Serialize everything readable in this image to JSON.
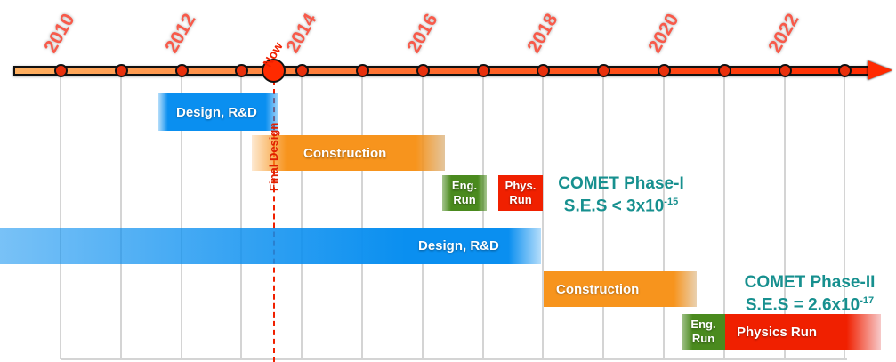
{
  "timeline": {
    "years": [
      "2010",
      "2012",
      "2014",
      "2016",
      "2018",
      "2020",
      "2022"
    ],
    "now_label": "Now",
    "final_design_label": "Final Design",
    "colors": {
      "axis": "#ff2a00",
      "design": "#0a8ff0",
      "construction": "#f7941d",
      "eng_run": "#4a8a1e",
      "phys_run": "#f02000",
      "comet_text": "#17908f"
    }
  },
  "phase1": {
    "design": "Design, R&D",
    "construction": "Construction",
    "eng_run": [
      "Eng.",
      "Run"
    ],
    "phys_run": [
      "Phys.",
      "Run"
    ],
    "title": "COMET Phase-I",
    "ses_prefix": "S.E.S < 3x10",
    "ses_exp": "-15"
  },
  "phase2": {
    "design": "Design, R&D",
    "construction": "Construction",
    "eng_run": [
      "Eng.",
      "Run"
    ],
    "phys_run": "Physics Run",
    "title": "COMET Phase-II",
    "ses_prefix": "S.E.S = 2.6x10",
    "ses_exp": "-17"
  }
}
